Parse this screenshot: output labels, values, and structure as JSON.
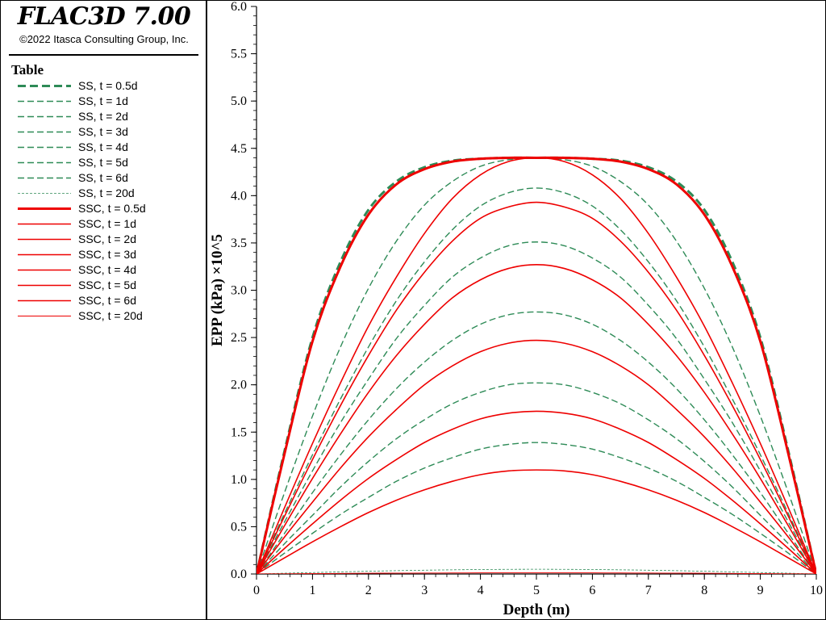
{
  "app": {
    "title": "FLAC3D 7.00",
    "copyright": "©2022 Itasca Consulting Group, Inc."
  },
  "legend": {
    "heading": "Table",
    "items": [
      {
        "label": "SS, t = 0.5d",
        "color": "#2e8b57",
        "style": "dash-heavy"
      },
      {
        "label": "SS, t = 1d",
        "color": "#2e8b57",
        "style": "dash"
      },
      {
        "label": "SS, t = 2d",
        "color": "#2e8b57",
        "style": "dash"
      },
      {
        "label": "SS, t = 3d",
        "color": "#2e8b57",
        "style": "dash"
      },
      {
        "label": "SS, t = 4d",
        "color": "#2e8b57",
        "style": "dash"
      },
      {
        "label": "SS, t = 5d",
        "color": "#2e8b57",
        "style": "dash"
      },
      {
        "label": "SS, t = 6d",
        "color": "#2e8b57",
        "style": "dash"
      },
      {
        "label": "SS, t = 20d",
        "color": "#2e8b57",
        "style": "dash-thin"
      },
      {
        "label": "SSC, t = 0.5d",
        "color": "#ee0000",
        "style": "solid-heavy"
      },
      {
        "label": "SSC, t = 1d",
        "color": "#ee0000",
        "style": "solid"
      },
      {
        "label": "SSC, t = 2d",
        "color": "#ee0000",
        "style": "solid"
      },
      {
        "label": "SSC, t = 3d",
        "color": "#ee0000",
        "style": "solid"
      },
      {
        "label": "SSC, t = 4d",
        "color": "#ee0000",
        "style": "solid"
      },
      {
        "label": "SSC, t = 5d",
        "color": "#ee0000",
        "style": "solid"
      },
      {
        "label": "SSC, t = 6d",
        "color": "#ee0000",
        "style": "solid"
      },
      {
        "label": "SSC, t = 20d",
        "color": "#ee0000",
        "style": "solid-thin"
      }
    ]
  },
  "chart_data": {
    "type": "line",
    "xlabel": "Depth (m)",
    "ylabel": "EPP (kPa) ×10^5",
    "xlim": [
      0,
      10
    ],
    "ylim": [
      0,
      6
    ],
    "xticks": [
      "0",
      "1",
      "2",
      "3",
      "4",
      "5",
      "6",
      "7",
      "8",
      "9",
      "10"
    ],
    "yticks": [
      "0.0",
      "0.5",
      "1.0",
      "1.5",
      "2.0",
      "2.5",
      "3.0",
      "3.5",
      "4.0",
      "4.5",
      "5.0",
      "5.5",
      "6.0"
    ],
    "grid": false,
    "legend_position": "left-panel",
    "x": [
      0,
      0.5,
      1,
      1.5,
      2,
      2.5,
      3,
      3.5,
      4,
      4.5,
      5,
      5.5,
      6,
      6.5,
      7,
      7.5,
      8,
      8.5,
      9,
      9.5,
      10
    ],
    "series": [
      {
        "name": "SS, t = 0.5d",
        "color": "#2e8b57",
        "values": [
          0,
          1.3,
          2.5,
          3.3,
          3.85,
          4.15,
          4.3,
          4.37,
          4.39,
          4.4,
          4.4,
          4.4,
          4.39,
          4.37,
          4.3,
          4.15,
          3.85,
          3.3,
          2.5,
          1.3,
          0
        ]
      },
      {
        "name": "SS, t = 1d",
        "color": "#2e8b57",
        "values": [
          0,
          0.86,
          1.67,
          2.4,
          3.02,
          3.52,
          3.9,
          4.15,
          4.31,
          4.38,
          4.4,
          4.38,
          4.31,
          4.15,
          3.9,
          3.52,
          3.02,
          2.4,
          1.67,
          0.86,
          0
        ]
      },
      {
        "name": "SS, t = 2d",
        "color": "#2e8b57",
        "values": [
          0,
          0.64,
          1.26,
          1.85,
          2.4,
          2.89,
          3.3,
          3.64,
          3.89,
          4.03,
          4.08,
          4.03,
          3.89,
          3.64,
          3.3,
          2.89,
          2.4,
          1.85,
          1.26,
          0.64,
          0
        ]
      },
      {
        "name": "SS, t = 3d",
        "color": "#2e8b57",
        "values": [
          0,
          0.55,
          1.09,
          1.6,
          2.06,
          2.49,
          2.84,
          3.14,
          3.34,
          3.47,
          3.51,
          3.47,
          3.34,
          3.14,
          2.84,
          2.49,
          2.06,
          1.6,
          1.09,
          0.55,
          0
        ]
      },
      {
        "name": "SS, t = 4d",
        "color": "#2e8b57",
        "values": [
          0,
          0.43,
          0.86,
          1.26,
          1.63,
          1.96,
          2.24,
          2.47,
          2.64,
          2.74,
          2.77,
          2.74,
          2.64,
          2.47,
          2.24,
          1.96,
          1.63,
          1.26,
          0.86,
          0.43,
          0
        ]
      },
      {
        "name": "SS, t = 5d",
        "color": "#2e8b57",
        "values": [
          0,
          0.32,
          0.62,
          0.92,
          1.19,
          1.43,
          1.63,
          1.8,
          1.92,
          2.0,
          2.02,
          2.0,
          1.92,
          1.8,
          1.63,
          1.43,
          1.19,
          0.92,
          0.62,
          0.32,
          0
        ]
      },
      {
        "name": "SS, t = 6d",
        "color": "#2e8b57",
        "values": [
          0,
          0.22,
          0.43,
          0.63,
          0.81,
          0.98,
          1.12,
          1.23,
          1.32,
          1.37,
          1.39,
          1.37,
          1.32,
          1.23,
          1.12,
          0.98,
          0.81,
          0.63,
          0.43,
          0.22,
          0
        ]
      },
      {
        "name": "SS, t = 20d",
        "color": "#2e8b57",
        "values": [
          0,
          0.008,
          0.015,
          0.022,
          0.029,
          0.035,
          0.04,
          0.044,
          0.047,
          0.049,
          0.05,
          0.049,
          0.047,
          0.044,
          0.04,
          0.035,
          0.029,
          0.022,
          0.015,
          0.008,
          0
        ]
      },
      {
        "name": "SSC, t = 0.5d",
        "color": "#ee0000",
        "values": [
          0,
          1.27,
          2.46,
          3.25,
          3.8,
          4.12,
          4.28,
          4.36,
          4.39,
          4.4,
          4.4,
          4.4,
          4.39,
          4.36,
          4.28,
          4.12,
          3.8,
          3.25,
          2.46,
          1.27,
          0
        ]
      },
      {
        "name": "SSC, t = 1d",
        "color": "#ee0000",
        "values": [
          0,
          0.7,
          1.38,
          2.02,
          2.62,
          3.14,
          3.6,
          3.97,
          4.22,
          4.36,
          4.4,
          4.36,
          4.22,
          3.97,
          3.6,
          3.14,
          2.62,
          2.02,
          1.38,
          0.7,
          0
        ]
      },
      {
        "name": "SSC, t = 2d",
        "color": "#ee0000",
        "values": [
          0,
          0.61,
          1.21,
          1.78,
          2.31,
          2.79,
          3.19,
          3.52,
          3.76,
          3.88,
          3.93,
          3.88,
          3.76,
          3.52,
          3.19,
          2.79,
          2.31,
          1.78,
          1.21,
          0.61,
          0
        ]
      },
      {
        "name": "SSC, t = 3d",
        "color": "#ee0000",
        "values": [
          0,
          0.51,
          1.01,
          1.48,
          1.92,
          2.31,
          2.64,
          2.92,
          3.11,
          3.23,
          3.27,
          3.23,
          3.11,
          2.92,
          2.64,
          2.31,
          1.92,
          1.48,
          1.01,
          0.51,
          0
        ]
      },
      {
        "name": "SSC, t = 4d",
        "color": "#ee0000",
        "values": [
          0,
          0.39,
          0.76,
          1.12,
          1.45,
          1.74,
          2.0,
          2.2,
          2.35,
          2.44,
          2.47,
          2.44,
          2.35,
          2.2,
          2.0,
          1.74,
          1.45,
          1.12,
          0.76,
          0.39,
          0
        ]
      },
      {
        "name": "SSC, t = 5d",
        "color": "#ee0000",
        "values": [
          0,
          0.27,
          0.53,
          0.78,
          1.01,
          1.21,
          1.39,
          1.53,
          1.64,
          1.7,
          1.72,
          1.7,
          1.64,
          1.53,
          1.39,
          1.21,
          1.01,
          0.78,
          0.53,
          0.27,
          0
        ]
      },
      {
        "name": "SSC, t = 6d",
        "color": "#ee0000",
        "values": [
          0,
          0.17,
          0.34,
          0.5,
          0.65,
          0.78,
          0.89,
          0.98,
          1.05,
          1.09,
          1.1,
          1.09,
          1.05,
          0.98,
          0.89,
          0.78,
          0.65,
          0.5,
          0.34,
          0.17,
          0
        ]
      },
      {
        "name": "SSC, t = 20d",
        "color": "#ee0000",
        "values": [
          0,
          0.002,
          0.004,
          0.006,
          0.008,
          0.009,
          0.01,
          0.011,
          0.012,
          0.012,
          0.012,
          0.012,
          0.012,
          0.011,
          0.01,
          0.009,
          0.008,
          0.006,
          0.004,
          0.002,
          0
        ]
      }
    ]
  }
}
